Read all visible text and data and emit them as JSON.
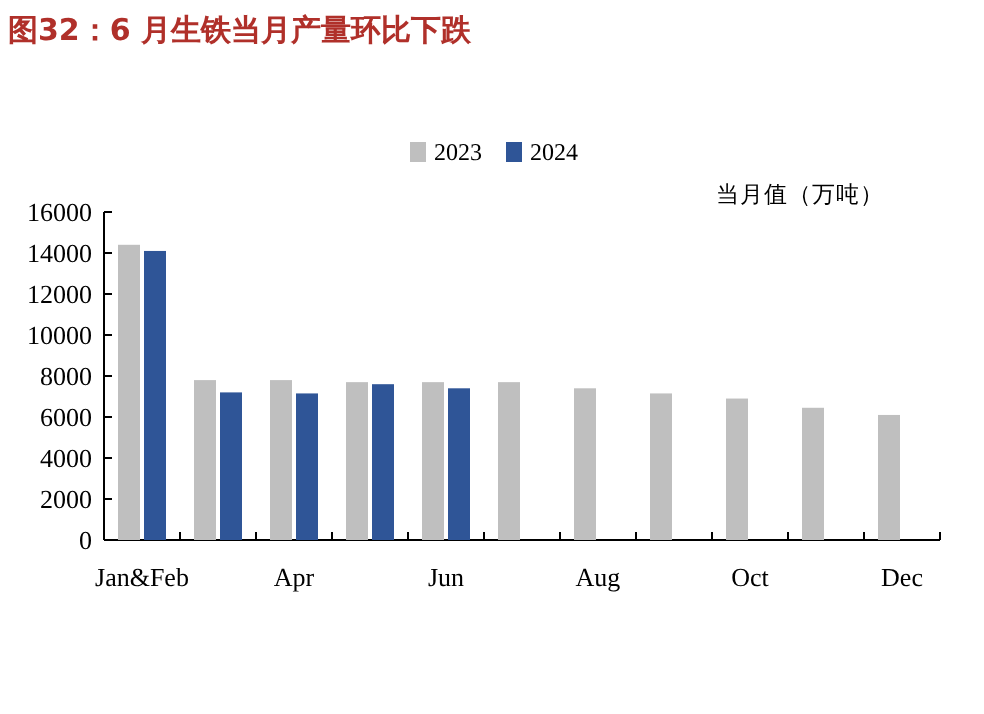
{
  "chart_data": {
    "type": "bar",
    "title": "图32：6 月生铁当月产量环比下跌",
    "ylabel": "当月值（万吨）",
    "categories": [
      "Jan&Feb",
      null,
      "Apr",
      null,
      "Jun",
      null,
      "Aug",
      null,
      "Oct",
      null,
      "Dec"
    ],
    "series": [
      {
        "name": "2023",
        "color": "#bfbfbf",
        "values": [
          14400,
          7800,
          7800,
          7700,
          7700,
          7700,
          7400,
          7150,
          6900,
          6450,
          6100
        ]
      },
      {
        "name": "2024",
        "color": "#2f5597",
        "values": [
          14100,
          7200,
          7150,
          7600,
          7400,
          null,
          null,
          null,
          null,
          null,
          null
        ]
      }
    ],
    "ylim": [
      0,
      16000
    ],
    "yticks": [
      0,
      2000,
      4000,
      6000,
      8000,
      10000,
      12000,
      14000,
      16000
    ],
    "legend": "top right",
    "grid": false
  }
}
